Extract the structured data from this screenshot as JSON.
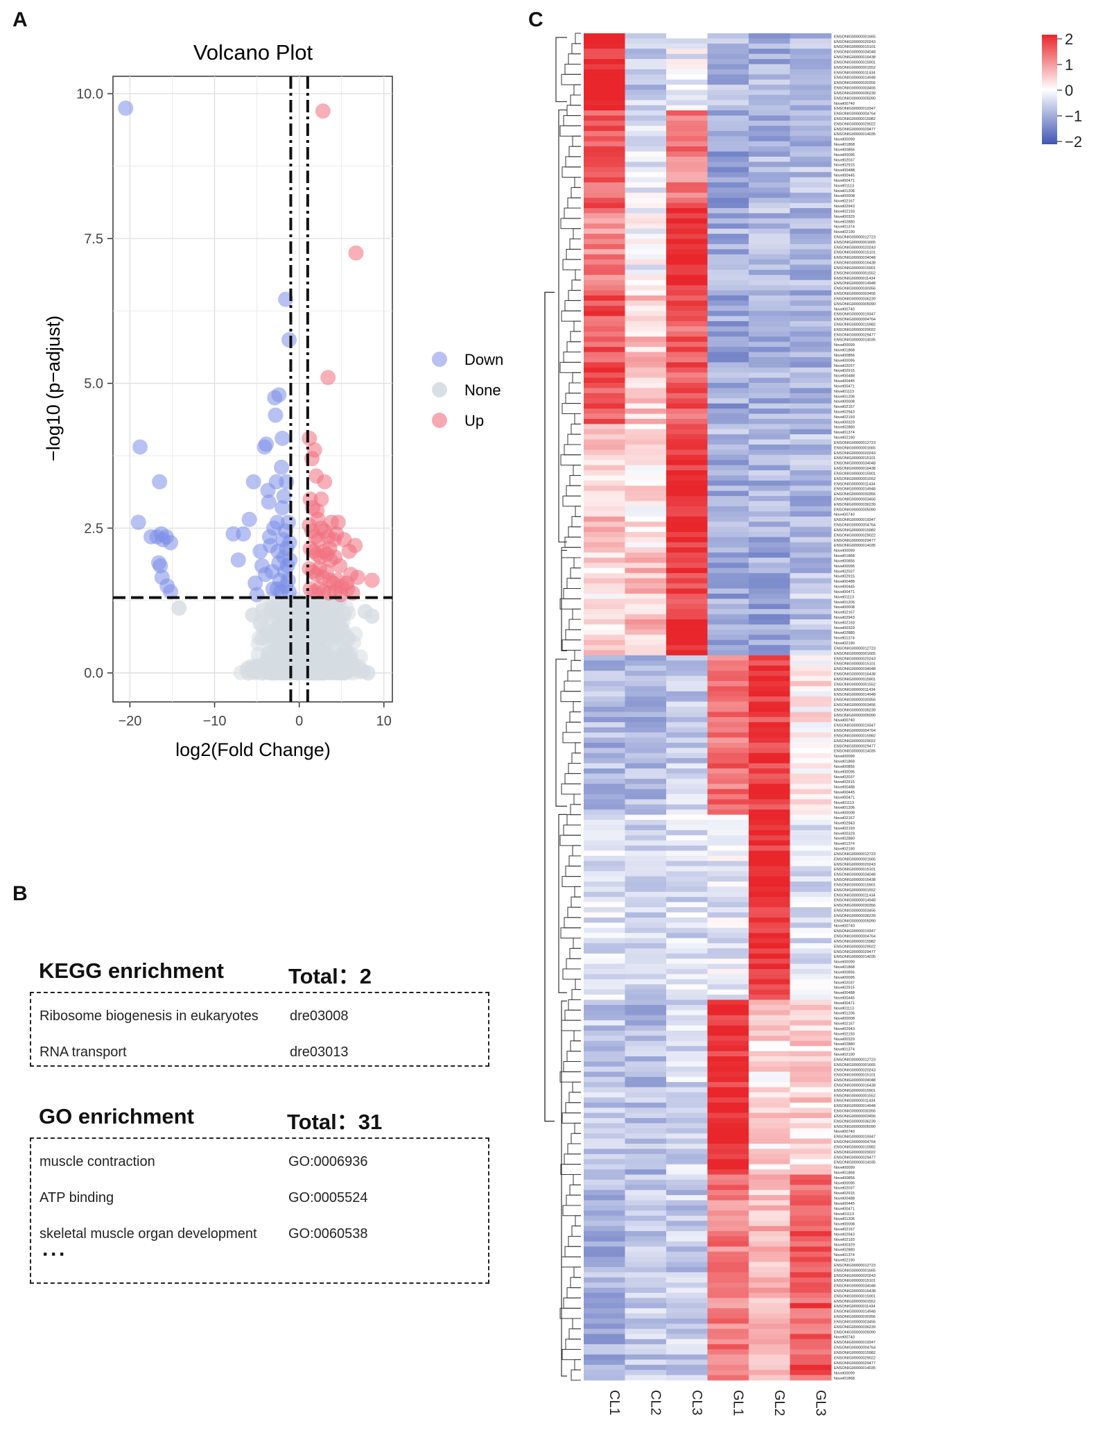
{
  "panels": {
    "a": "A",
    "b": "B",
    "c": "C"
  },
  "chart_data": [
    {
      "type": "scatter",
      "title": "Volcano Plot",
      "xlabel": "log2(Fold Change)",
      "ylabel": "−log10 (p−adjust)",
      "xlim": [
        -22,
        11
      ],
      "ylim": [
        -0.5,
        10.3
      ],
      "xticks": [
        -20,
        -10,
        0,
        10
      ],
      "xtick_labels": [
        "−20",
        "−10",
        "0",
        "10"
      ],
      "yticks": [
        0,
        2.5,
        5.0,
        7.5,
        10.0
      ],
      "ytick_labels": [
        "0.0",
        "2.5",
        "5.0",
        "7.5",
        "10.0"
      ],
      "thresholds": {
        "log2fc": [
          -1,
          1
        ],
        "neg_log10_padj": 1.3
      },
      "legend": [
        "Down",
        "None",
        "Up"
      ],
      "colors": {
        "Down": "#7b8ee8",
        "None": "#d6dce2",
        "Up": "#f0707e"
      },
      "series": [
        {
          "name": "Down",
          "points": [
            [
              -20.5,
              9.75
            ],
            [
              -18.8,
              3.9
            ],
            [
              -19,
              2.6
            ],
            [
              -17.5,
              2.35
            ],
            [
              -16.5,
              3.3
            ],
            [
              -16.8,
              2.35
            ],
            [
              -16.3,
              2.4
            ],
            [
              -16.1,
              2.3
            ],
            [
              -15.7,
              2.35
            ],
            [
              -15.2,
              2.25
            ],
            [
              -16.6,
              1.9
            ],
            [
              -16.4,
              1.85
            ],
            [
              -16.2,
              1.65
            ],
            [
              -15.6,
              1.5
            ],
            [
              -15.2,
              1.4
            ],
            [
              -7.8,
              2.4
            ],
            [
              -7.2,
              1.95
            ],
            [
              -6.6,
              2.4
            ],
            [
              -5.9,
              2.65
            ],
            [
              -5.4,
              3.3
            ],
            [
              -5.2,
              1.55
            ],
            [
              -5,
              1.35
            ],
            [
              -4.6,
              2.1
            ],
            [
              -4.4,
              1.85
            ],
            [
              -4.1,
              3.9
            ],
            [
              -3.9,
              3.95
            ],
            [
              -3.7,
              3.15
            ],
            [
              -3.6,
              2.95
            ],
            [
              -3.5,
              2.35
            ],
            [
              -3.4,
              2.2
            ],
            [
              -3.2,
              1.75
            ],
            [
              -3.1,
              1.45
            ],
            [
              -2.9,
              4.75
            ],
            [
              -2.8,
              4.45
            ],
            [
              -2.7,
              3.3
            ],
            [
              -2.6,
              2.6
            ],
            [
              -2.5,
              2.1
            ],
            [
              -2.4,
              1.9
            ],
            [
              -2.3,
              1.6
            ],
            [
              -2.2,
              1.4
            ],
            [
              -2.4,
              4.8
            ],
            [
              -2.1,
              3.55
            ],
            [
              -2.0,
              2.85
            ],
            [
              -1.9,
              2.3
            ],
            [
              -1.8,
              2.0
            ],
            [
              -1.7,
              1.75
            ],
            [
              -1.6,
              1.5
            ],
            [
              -2.0,
              4.05
            ],
            [
              -1.8,
              3.05
            ],
            [
              -1.6,
              2.45
            ],
            [
              -1.5,
              2.15
            ],
            [
              -1.4,
              1.85
            ],
            [
              -1.3,
              1.6
            ],
            [
              -1.2,
              1.4
            ],
            [
              -1.6,
              6.45
            ],
            [
              -1.2,
              5.75
            ],
            [
              -1.5,
              3.3
            ],
            [
              -1.3,
              2.6
            ],
            [
              -1.15,
              2.25
            ],
            [
              -1.1,
              1.95
            ],
            [
              -3.0,
              2.5
            ],
            [
              -4.0,
              1.7
            ],
            [
              -2.6,
              1.45
            ]
          ]
        },
        {
          "name": "Up",
          "points": [
            [
              2.8,
              9.7
            ],
            [
              6.7,
              7.25
            ],
            [
              3.4,
              5.1
            ],
            [
              1.2,
              4.05
            ],
            [
              1.5,
              3.7
            ],
            [
              1.8,
              3.85
            ],
            [
              2.0,
              3.4
            ],
            [
              3.0,
              3.3
            ],
            [
              1.3,
              3.0
            ],
            [
              1.6,
              2.85
            ],
            [
              2.1,
              2.8
            ],
            [
              1.2,
              2.55
            ],
            [
              1.5,
              2.45
            ],
            [
              1.9,
              2.35
            ],
            [
              2.3,
              2.3
            ],
            [
              2.6,
              2.5
            ],
            [
              3.0,
              2.45
            ],
            [
              3.4,
              2.35
            ],
            [
              3.8,
              2.6
            ],
            [
              4.1,
              2.3
            ],
            [
              4.4,
              2.4
            ],
            [
              1.3,
              2.15
            ],
            [
              1.7,
              2.1
            ],
            [
              2.1,
              2.05
            ],
            [
              2.5,
              2.0
            ],
            [
              2.9,
              2.1
            ],
            [
              3.3,
              2.05
            ],
            [
              3.7,
              1.95
            ],
            [
              4.2,
              2.0
            ],
            [
              4.8,
              1.85
            ],
            [
              5.3,
              2.3
            ],
            [
              5.9,
              2.1
            ],
            [
              6.6,
              2.2
            ],
            [
              1.2,
              1.8
            ],
            [
              1.6,
              1.75
            ],
            [
              2.0,
              1.7
            ],
            [
              2.4,
              1.8
            ],
            [
              2.8,
              1.65
            ],
            [
              3.2,
              1.75
            ],
            [
              3.6,
              1.6
            ],
            [
              4.0,
              1.55
            ],
            [
              4.5,
              1.6
            ],
            [
              5.0,
              1.5
            ],
            [
              5.6,
              1.55
            ],
            [
              6.1,
              1.7
            ],
            [
              6.9,
              1.65
            ],
            [
              8.6,
              1.6
            ],
            [
              1.3,
              1.45
            ],
            [
              1.8,
              1.4
            ],
            [
              2.3,
              1.45
            ],
            [
              2.9,
              1.4
            ],
            [
              3.5,
              1.38
            ],
            [
              4.2,
              1.4
            ],
            [
              4.9,
              1.35
            ],
            [
              5.7,
              1.45
            ],
            [
              6.3,
              1.38
            ],
            [
              2.2,
              2.65
            ],
            [
              3.6,
              2.15
            ],
            [
              2.6,
              3.0
            ],
            [
              4.6,
              2.6
            ]
          ]
        },
        {
          "name": "None",
          "summary": "dense cluster of ~thousands of genes between log2FC -6 and 8 with -log10(padj) between 0 and 1.3, plus sparse points near 1.0-1.2",
          "points": [
            [
              -14.2,
              1.12
            ],
            [
              -5.5,
              1.0
            ],
            [
              -3.2,
              1.05
            ],
            [
              5.3,
              1.02
            ],
            [
              7.8,
              1.06
            ],
            [
              8.6,
              0.98
            ],
            [
              -4.6,
              0.85
            ],
            [
              4.7,
              0.9
            ],
            [
              -6.0,
              0.0
            ],
            [
              8.1,
              0.0
            ],
            [
              -5.5,
              0.05
            ],
            [
              7.5,
              0.03
            ]
          ]
        }
      ]
    },
    {
      "type": "heatmap",
      "columns": [
        "CL1",
        "CL2",
        "CL3",
        "GL1",
        "GL2",
        "GL3"
      ],
      "colorbar": {
        "ticks": [
          "2",
          "1",
          "0",
          "−1",
          "−2"
        ],
        "range": [
          -2,
          2
        ],
        "colors": [
          "#e8262b",
          "#ffffff",
          "#3f55b3"
        ]
      },
      "row_count": 262,
      "row_labels_visible": [
        "ENSONIG00000001665",
        "ENSONIG00000020243",
        "ENSONIG00000015101",
        "ENSONIG00000034048",
        "ENSONIG00000016438",
        "ENSONIG00000015901",
        "ENSONIG00000001552",
        "ENSONIG00000011434",
        "ENSONIG00000014948",
        "ENSONIG00000030356",
        "ENSONIG00000003456",
        "ENSONIG00000036239",
        "ENSONIG00000005090",
        "Novel00740",
        "ENSONIG00000019347",
        "ENSONIG00000004764",
        "ENSONIG00000015982",
        "ENSONIG00000029022",
        "ENSONIG00000029477",
        "ENSONIG00000014035",
        "Novel00099",
        "Novel01868",
        "Novel00856",
        "Novel00095",
        "Novel02037",
        "Novel02915",
        "Novel00488",
        "Novel00445",
        "Novel00471",
        "Novel01113",
        "Novel01206",
        "Novel00008",
        "Novel02167",
        "Novel02943",
        "Novel02193",
        "Novel00329",
        "Novel02880",
        "Novel01374",
        "Novel02190",
        "ENSONIG00000012723"
      ]
    }
  ],
  "kegg": {
    "title": "KEGG enrichment",
    "total": "Total：2",
    "rows": [
      {
        "term": "Ribosome biogenesis in eukaryotes",
        "id": "dre03008"
      },
      {
        "term": "RNA transport",
        "id": "dre03013"
      }
    ]
  },
  "go": {
    "title": "GO enrichment",
    "total": "Total：31",
    "rows": [
      {
        "term": "muscle contraction",
        "id": "GO:0006936"
      },
      {
        "term": "ATP binding",
        "id": "GO:0005524"
      },
      {
        "term": "skeletal muscle organ development",
        "id": "GO:0060538"
      }
    ],
    "ellipsis": "···"
  }
}
